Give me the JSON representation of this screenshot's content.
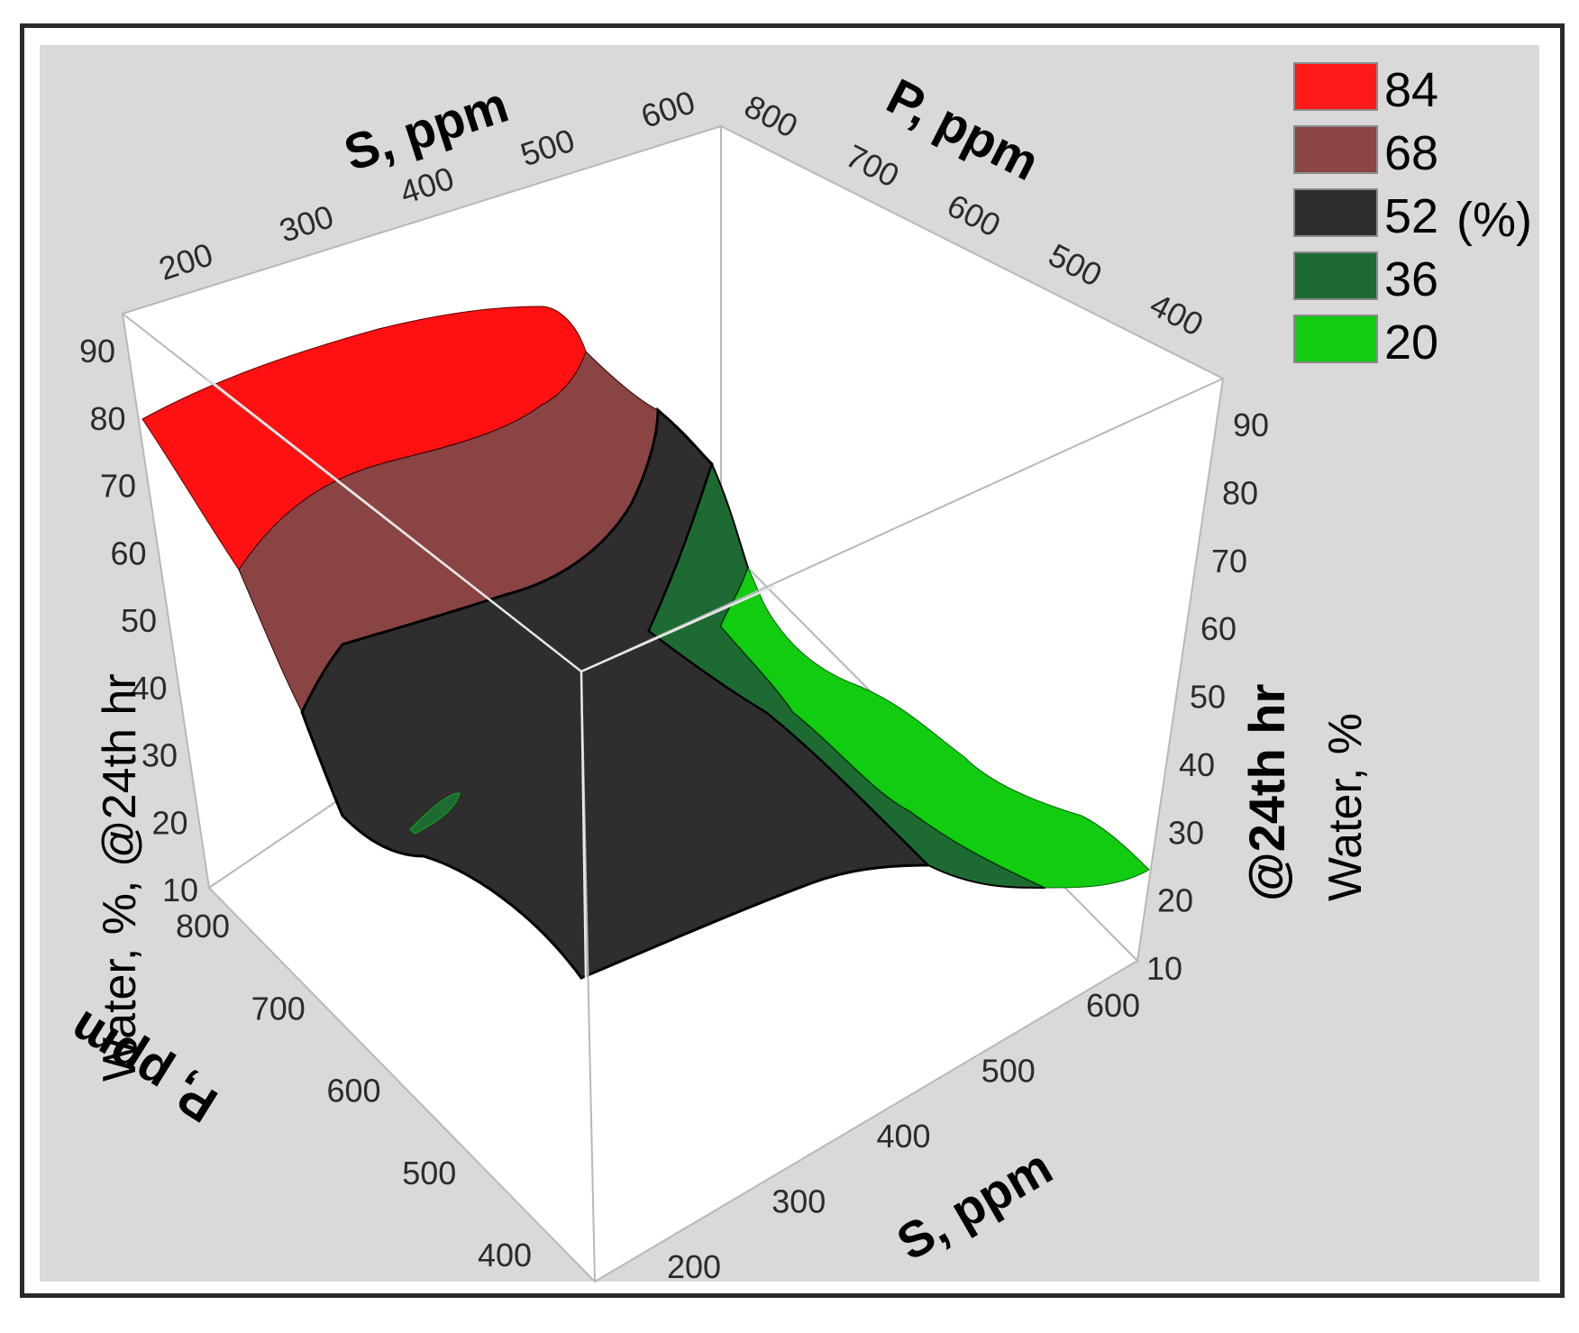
{
  "chart_data": {
    "type": "surface-3d",
    "x_axis": {
      "label": "S, ppm",
      "ticks": [
        "200",
        "300",
        "400",
        "500",
        "600"
      ],
      "range": [
        200,
        600
      ]
    },
    "y_axis": {
      "label": "P, ppm",
      "ticks": [
        "400",
        "500",
        "600",
        "700",
        "800"
      ],
      "range": [
        400,
        800
      ]
    },
    "z_axis": {
      "label_left": "Water, %,  @24th hr",
      "label_right_line1": "@24th hr",
      "label_right_line2": "Water, %",
      "ticks": [
        "10",
        "20",
        "30",
        "40",
        "50",
        "60",
        "70",
        "80",
        "90"
      ],
      "range": [
        10,
        90
      ]
    },
    "legend": {
      "placement": "top-right",
      "unit": "(%)",
      "entries": [
        {
          "label": "84",
          "color": "#ff1a1a"
        },
        {
          "label": "68",
          "color": "#8b4545"
        },
        {
          "label": "52",
          "color": "#2e2e2e"
        },
        {
          "label": "36",
          "color": "#1d6b33"
        },
        {
          "label": "20",
          "color": "#11cc11"
        }
      ]
    },
    "colors": {
      "background": "#d9d9d9",
      "box_face": "#ffffff",
      "box_edge": "#b0b0b0"
    }
  }
}
